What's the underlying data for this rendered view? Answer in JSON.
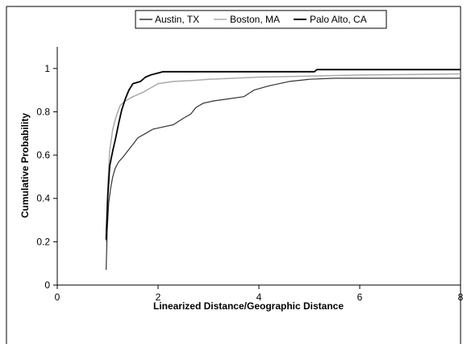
{
  "chart_data": {
    "type": "line",
    "title": "",
    "xlabel": "Linearized Distance/Geographic Distance",
    "ylabel": "Cumulative Probability",
    "xlim": [
      0,
      8
    ],
    "ylim": [
      0,
      1.1
    ],
    "xticks": [
      0,
      2,
      4,
      6,
      8
    ],
    "yticks": [
      0,
      0.2,
      0.4,
      0.6,
      0.8,
      1
    ],
    "xtick_labels": [
      "0",
      "2",
      "4",
      "6",
      "8"
    ],
    "ytick_labels": [
      "0",
      "0.2",
      "0.4",
      "0.6",
      "0.8",
      "1"
    ],
    "grid": false,
    "legend_position": "top",
    "series": [
      {
        "name": "Austin, TX",
        "color": "#333333",
        "values": [
          [
            0.97,
            0.07
          ],
          [
            0.99,
            0.25
          ],
          [
            1.02,
            0.38
          ],
          [
            1.06,
            0.45
          ],
          [
            1.1,
            0.5
          ],
          [
            1.15,
            0.54
          ],
          [
            1.22,
            0.57
          ],
          [
            1.3,
            0.59
          ],
          [
            1.4,
            0.62
          ],
          [
            1.5,
            0.65
          ],
          [
            1.6,
            0.68
          ],
          [
            1.75,
            0.7
          ],
          [
            1.9,
            0.72
          ],
          [
            2.1,
            0.73
          ],
          [
            2.3,
            0.74
          ],
          [
            2.5,
            0.77
          ],
          [
            2.65,
            0.79
          ],
          [
            2.75,
            0.82
          ],
          [
            2.9,
            0.84
          ],
          [
            3.1,
            0.85
          ],
          [
            3.4,
            0.86
          ],
          [
            3.7,
            0.87
          ],
          [
            3.9,
            0.9
          ],
          [
            4.2,
            0.92
          ],
          [
            4.6,
            0.94
          ],
          [
            5.0,
            0.95
          ],
          [
            5.5,
            0.955
          ],
          [
            6.5,
            0.955
          ],
          [
            8.0,
            0.955
          ]
        ]
      },
      {
        "name": "Boston, MA",
        "color": "#aaaaaa",
        "values": [
          [
            0.97,
            0.2
          ],
          [
            1.0,
            0.45
          ],
          [
            1.04,
            0.62
          ],
          [
            1.1,
            0.72
          ],
          [
            1.17,
            0.78
          ],
          [
            1.25,
            0.83
          ],
          [
            1.35,
            0.85
          ],
          [
            1.5,
            0.87
          ],
          [
            1.7,
            0.89
          ],
          [
            1.85,
            0.91
          ],
          [
            2.0,
            0.93
          ],
          [
            2.3,
            0.94
          ],
          [
            2.7,
            0.945
          ],
          [
            3.0,
            0.95
          ],
          [
            3.5,
            0.955
          ],
          [
            4.0,
            0.96
          ],
          [
            5.0,
            0.965
          ],
          [
            6.0,
            0.97
          ],
          [
            8.0,
            0.975
          ]
        ]
      },
      {
        "name": "Palo Alto, CA",
        "color": "#000000",
        "values": [
          [
            0.97,
            0.21
          ],
          [
            1.0,
            0.4
          ],
          [
            1.04,
            0.55
          ],
          [
            1.1,
            0.62
          ],
          [
            1.16,
            0.68
          ],
          [
            1.22,
            0.75
          ],
          [
            1.28,
            0.81
          ],
          [
            1.35,
            0.86
          ],
          [
            1.42,
            0.9
          ],
          [
            1.5,
            0.93
          ],
          [
            1.65,
            0.94
          ],
          [
            1.75,
            0.96
          ],
          [
            1.85,
            0.97
          ],
          [
            2.1,
            0.985
          ],
          [
            3.0,
            0.985
          ],
          [
            5.1,
            0.985
          ],
          [
            5.15,
            0.995
          ],
          [
            8.0,
            0.995
          ]
        ]
      }
    ]
  }
}
